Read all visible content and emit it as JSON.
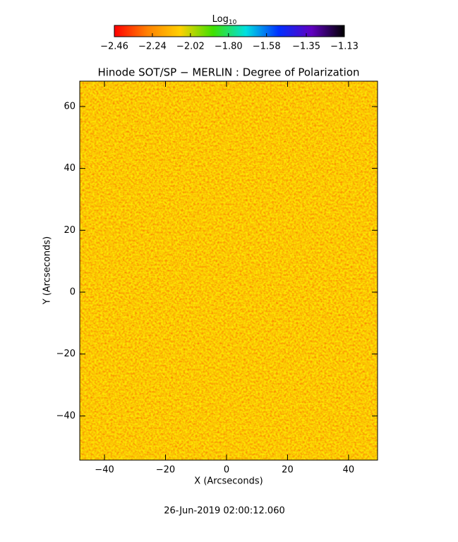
{
  "chart_data": {
    "type": "heatmap",
    "title": "Hinode SOT/SP − MERLIN : Degree of Polarization",
    "x_label": "X (Arcseconds)",
    "y_label": "Y (Arcseconds)",
    "footer": "26-Jun-2019 02:00:12.060",
    "colorbar_title": "Log",
    "colorbar_title_subscript": "10",
    "colormap": [
      "#ff0000",
      "#ff8000",
      "#ffd000",
      "#40e000",
      "#00e0e0",
      "#0030ff",
      "#6000c0",
      "#000000"
    ],
    "clim": [
      -2.46,
      -1.13
    ],
    "cticks": [
      {
        "value": -2.46,
        "label": "−2.46"
      },
      {
        "value": -2.24,
        "label": "−2.24"
      },
      {
        "value": -2.02,
        "label": "−2.02"
      },
      {
        "value": -1.8,
        "label": "−1.80"
      },
      {
        "value": -1.58,
        "label": "−1.58"
      },
      {
        "value": -1.35,
        "label": "−1.35"
      },
      {
        "value": -1.13,
        "label": "−1.13"
      }
    ],
    "xlim": [
      -48.1,
      49.5
    ],
    "xticks": [
      {
        "value": -40,
        "label": "−40"
      },
      {
        "value": -20,
        "label": "−20"
      },
      0,
      20,
      40
    ],
    "ylim": [
      -54.3,
      68.2
    ],
    "yticks": [
      {
        "value": -40,
        "label": "−40"
      },
      {
        "value": -20,
        "label": "−20"
      },
      0,
      20,
      40,
      60
    ]
  }
}
